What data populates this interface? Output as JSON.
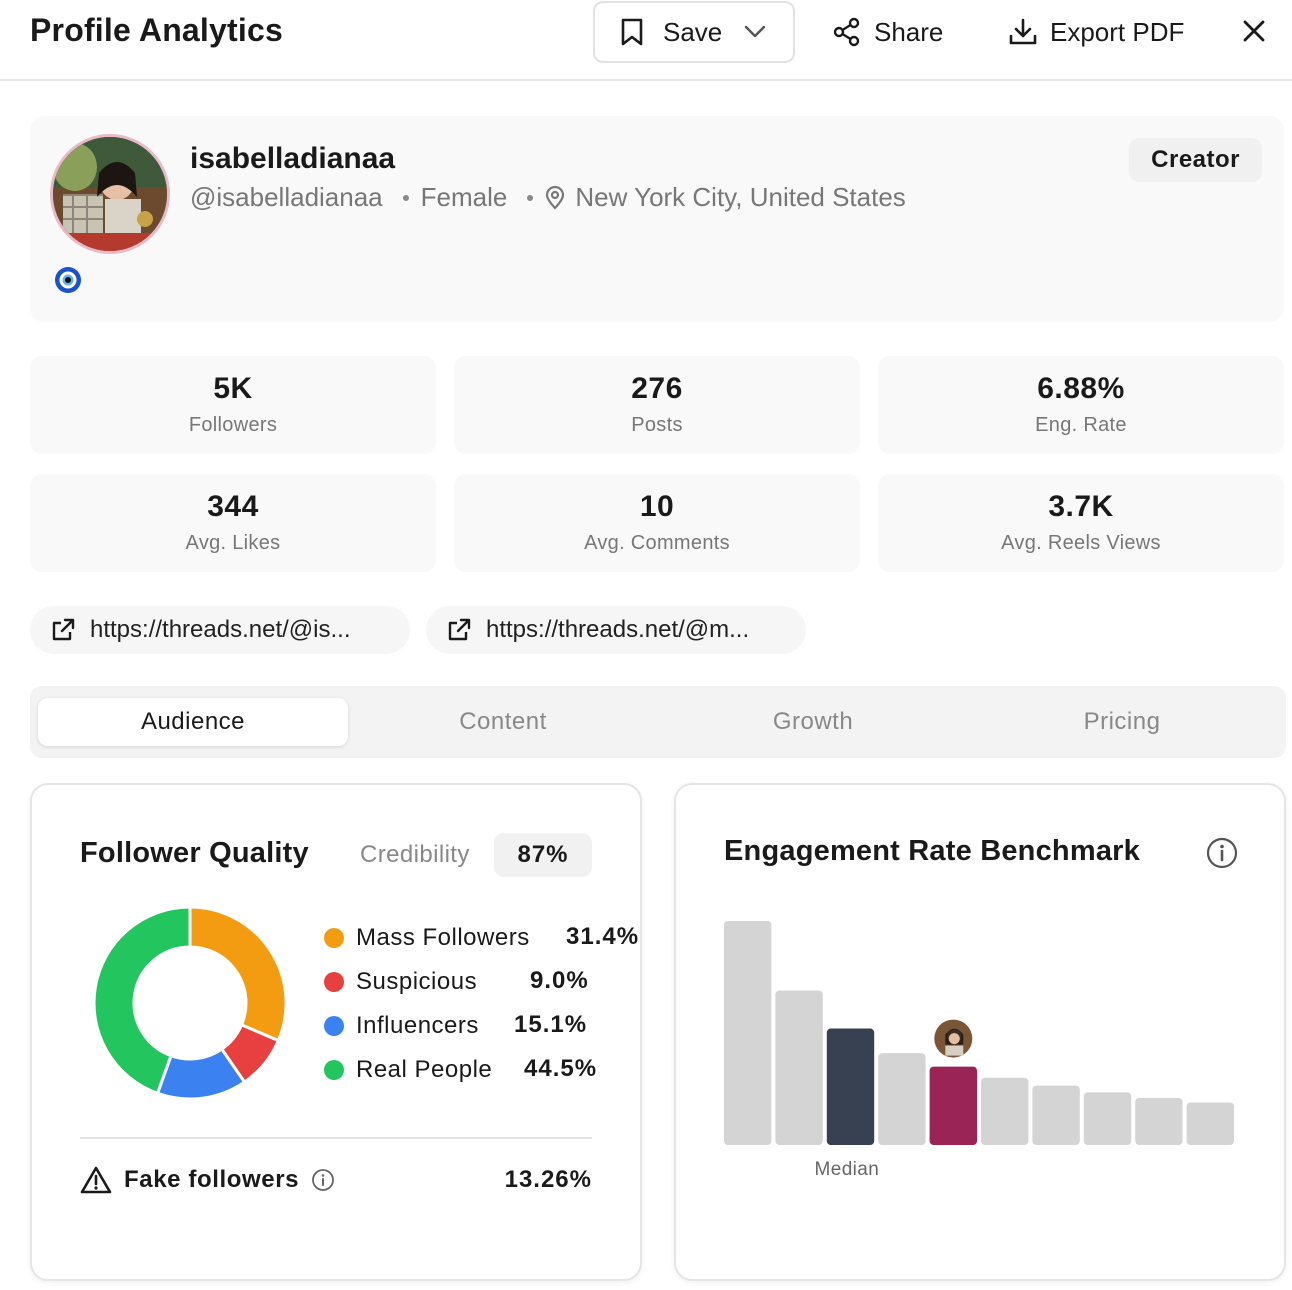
{
  "header": {
    "title": "Profile Analytics",
    "save_label": "Save",
    "share_label": "Share",
    "export_label": "Export PDF"
  },
  "profile": {
    "username": "isabelladianaa",
    "handle": "@isabelladianaa",
    "gender": "Female",
    "location": "New York City, United States",
    "badge": "Creator"
  },
  "stats": [
    {
      "value": "5K",
      "label": "Followers"
    },
    {
      "value": "276",
      "label": "Posts"
    },
    {
      "value": "6.88%",
      "label": "Eng. Rate"
    },
    {
      "value": "344",
      "label": "Avg. Likes"
    },
    {
      "value": "10",
      "label": "Avg. Comments"
    },
    {
      "value": "3.7K",
      "label": "Avg. Reels Views"
    }
  ],
  "links": [
    {
      "text": "https://threads.net/@is..."
    },
    {
      "text": "https://threads.net/@m..."
    }
  ],
  "tabs": [
    {
      "label": "Audience",
      "active": true
    },
    {
      "label": "Content",
      "active": false
    },
    {
      "label": "Growth",
      "active": false
    },
    {
      "label": "Pricing",
      "active": false
    }
  ],
  "follower_quality": {
    "title": "Follower Quality",
    "credibility_label": "Credibility",
    "credibility_value": "87%",
    "fake_label": "Fake followers",
    "fake_value": "13.26%"
  },
  "benchmark": {
    "title": "Engagement Rate Benchmark",
    "median_label": "Median"
  },
  "colors": {
    "mass": "#f39c12",
    "suspicious": "#e84040",
    "influencers": "#3b82f0",
    "real": "#22c55e",
    "bar_default": "#d4d4d4",
    "bar_median": "#374151",
    "bar_profile": "#9b2456"
  },
  "chart_data": [
    {
      "type": "pie",
      "categories": [
        "Mass Followers",
        "Suspicious",
        "Influencers",
        "Real People"
      ],
      "values": [
        31.4,
        9.0,
        15.1,
        44.5
      ],
      "labels": [
        "31.4%",
        "9.0%",
        "15.1%",
        "44.5%"
      ]
    },
    {
      "type": "bar",
      "title": "Engagement Rate Benchmark",
      "values": [
        100,
        69,
        52,
        41,
        35,
        30,
        26.5,
        23.5,
        21,
        19
      ],
      "median_index": 2,
      "profile_index": 4,
      "annotations": [
        "Median"
      ]
    }
  ]
}
